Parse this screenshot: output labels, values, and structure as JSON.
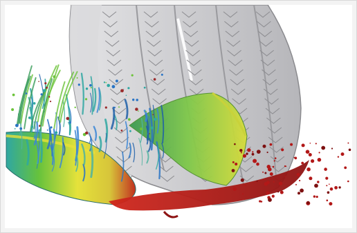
{
  "image": {
    "subject": "tire-hydroplaning-simulation",
    "colors": {
      "frame": "#f3f3f3",
      "background": "#ffffff",
      "tire_fill": "#c9c9cb",
      "tire_outline": "#8a8a8e",
      "water_red": "#b21818",
      "water_yellow": "#e8e03a",
      "water_green": "#6cc33a",
      "water_blue": "#2a74c4",
      "water_teal": "#2fa7a2"
    }
  }
}
